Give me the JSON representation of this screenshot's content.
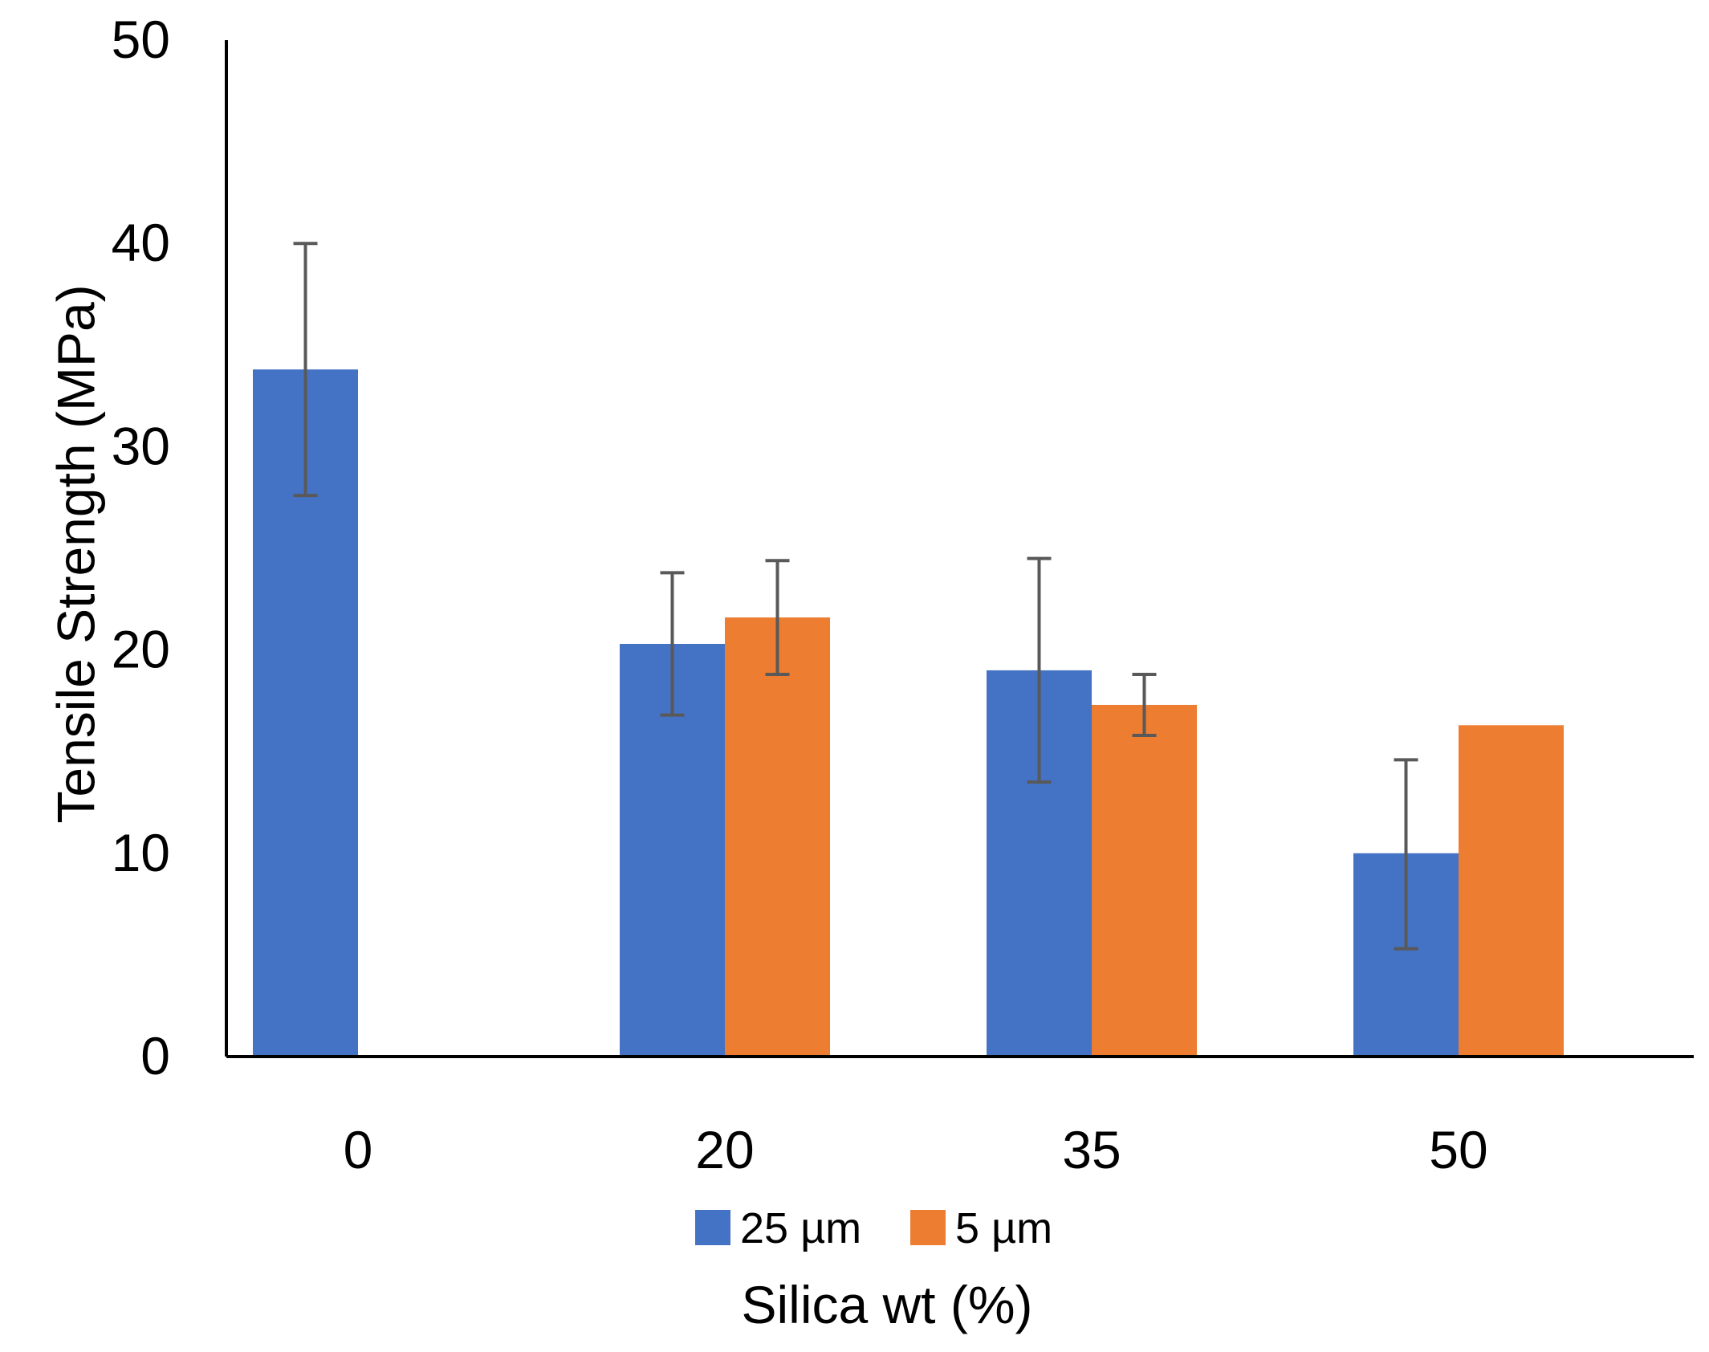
{
  "chart_data": {
    "type": "bar",
    "title": "",
    "xlabel": "Silica wt (%)",
    "ylabel": "Tensile Strength  (MPa)",
    "ylim": [
      0,
      50
    ],
    "yticks": [
      0,
      10,
      20,
      30,
      40,
      50
    ],
    "grid": false,
    "legend_position": "bottom",
    "categories": [
      "0",
      "20",
      "35",
      "50"
    ],
    "series": [
      {
        "name": "25 µm",
        "color": "#4472C4",
        "values": [
          33.8,
          20.3,
          19.0,
          10.0
        ],
        "error_low": [
          27.6,
          16.8,
          13.5,
          5.3
        ],
        "error_high": [
          40.0,
          23.8,
          24.5,
          14.6
        ]
      },
      {
        "name": "5 µm",
        "color": "#ED7D31",
        "values": [
          null,
          21.6,
          17.3,
          16.3
        ],
        "error_low": [
          null,
          18.8,
          15.8,
          null
        ],
        "error_high": [
          null,
          24.4,
          18.8,
          null
        ]
      }
    ],
    "error_bar_color": "#595959"
  }
}
